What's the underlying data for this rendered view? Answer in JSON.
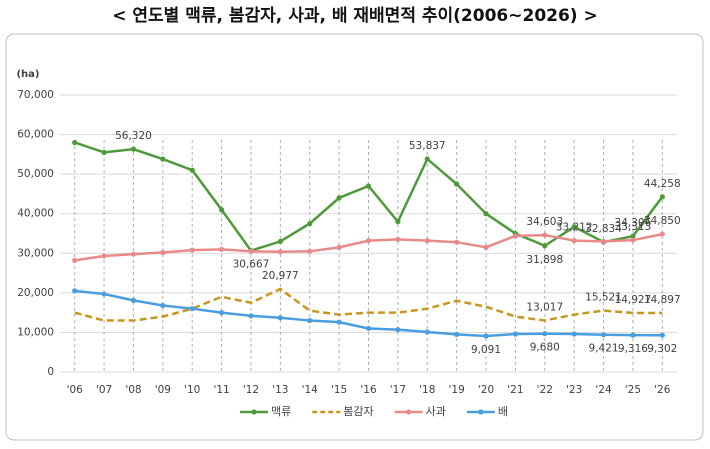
{
  "chart_data": {
    "type": "line",
    "title": "< 연도별 맥류, 봄감자, 사과, 배 재배면적 추이(2006~2026) >",
    "unit": "(ha)",
    "categories": [
      "'06",
      "'07",
      "'08",
      "'09",
      "'10",
      "'11",
      "'12",
      "'13",
      "'14",
      "'15",
      "'16",
      "'17",
      "'18",
      "'19",
      "'20",
      "'21",
      "'22",
      "'23",
      "'24",
      "'25",
      "'26"
    ],
    "series": [
      {
        "name": "맥류",
        "color": "#4e9a3a",
        "dash": false,
        "values": [
          58000,
          55500,
          56320,
          53800,
          51000,
          41000,
          30667,
          33000,
          37500,
          44000,
          47000,
          38000,
          53837,
          47500,
          40000,
          35000,
          31898,
          36700,
          32834,
          34306,
          44258
        ],
        "value_labels": [
          null,
          null,
          "56,320",
          null,
          null,
          null,
          "30,667",
          null,
          null,
          null,
          null,
          null,
          "53,837",
          null,
          null,
          null,
          "31,898",
          null,
          "32,834",
          "34,306",
          "44,258"
        ]
      },
      {
        "name": "봄감자",
        "color": "#c8961e",
        "dash": true,
        "values": [
          15000,
          13000,
          13000,
          14000,
          16000,
          19000,
          17500,
          20977,
          15500,
          14500,
          15000,
          15000,
          16000,
          18000,
          16500,
          14000,
          13017,
          14500,
          15521,
          14927,
          14897
        ],
        "value_labels": [
          null,
          null,
          null,
          null,
          null,
          null,
          null,
          "20,977",
          null,
          null,
          null,
          null,
          null,
          null,
          null,
          null,
          "13,017",
          null,
          "15,521",
          "14,927",
          "14,897"
        ]
      },
      {
        "name": "사과",
        "color": "#e88a8a",
        "dash": false,
        "values": [
          28200,
          29300,
          29800,
          30200,
          30800,
          31000,
          30500,
          30400,
          30500,
          31500,
          33200,
          33500,
          33200,
          32800,
          31500,
          34400,
          34603,
          33212,
          33000,
          33313,
          34850
        ],
        "value_labels": [
          null,
          null,
          null,
          null,
          null,
          null,
          null,
          null,
          null,
          null,
          null,
          null,
          null,
          null,
          null,
          null,
          "34,603",
          "33,212",
          null,
          "33,313",
          "34,850"
        ]
      },
      {
        "name": "배",
        "color": "#4a9ee0",
        "dash": false,
        "values": [
          20500,
          19700,
          18100,
          16800,
          16000,
          15000,
          14200,
          13700,
          13000,
          12600,
          11000,
          10700,
          10100,
          9500,
          9091,
          9600,
          9680,
          9600,
          9421,
          9316,
          9302
        ],
        "value_labels": [
          null,
          null,
          null,
          null,
          null,
          null,
          null,
          null,
          null,
          null,
          null,
          null,
          null,
          null,
          "9,091",
          null,
          "9,680",
          null,
          "9,421",
          "9,316",
          "9,302"
        ]
      }
    ],
    "ylim": [
      0,
      70000
    ],
    "yticks": [
      0,
      {
        "value": 10000,
        "label": "10,000"
      },
      {
        "value": 20000,
        "label": "20,000"
      },
      {
        "value": 30000,
        "label": "30,000"
      },
      {
        "value": 40000,
        "label": "40,000"
      },
      {
        "value": 50000,
        "label": "50,000"
      },
      {
        "value": 60000,
        "label": "60,000"
      },
      {
        "value": 70000,
        "label": "70,000"
      }
    ],
    "grid": true,
    "legend": "bottom"
  }
}
